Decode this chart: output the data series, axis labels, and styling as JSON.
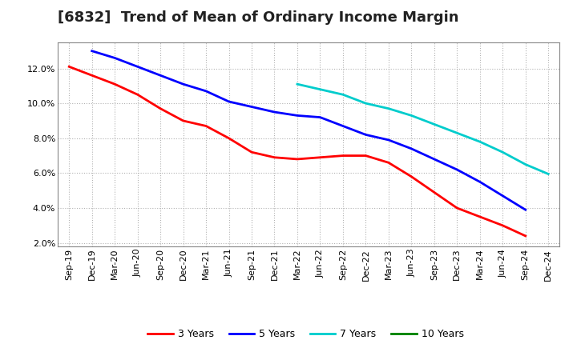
{
  "title": "[6832]  Trend of Mean of Ordinary Income Margin",
  "x_labels": [
    "Sep-19",
    "Dec-19",
    "Mar-20",
    "Jun-20",
    "Sep-20",
    "Dec-20",
    "Mar-21",
    "Jun-21",
    "Sep-21",
    "Dec-21",
    "Mar-22",
    "Jun-22",
    "Sep-22",
    "Dec-22",
    "Mar-23",
    "Jun-23",
    "Sep-23",
    "Dec-23",
    "Mar-24",
    "Jun-24",
    "Sep-24",
    "Dec-24"
  ],
  "series": {
    "3 Years": {
      "color": "#FF0000",
      "values": [
        12.1,
        11.6,
        11.1,
        10.5,
        9.7,
        9.0,
        8.7,
        8.0,
        7.2,
        6.9,
        6.8,
        6.9,
        7.0,
        7.0,
        6.6,
        5.8,
        4.9,
        4.0,
        3.5,
        3.0,
        2.4,
        null
      ]
    },
    "5 Years": {
      "color": "#0000FF",
      "values": [
        null,
        13.0,
        12.6,
        12.1,
        11.6,
        11.1,
        10.7,
        10.1,
        9.8,
        9.5,
        9.3,
        9.2,
        8.7,
        8.2,
        7.9,
        7.4,
        6.8,
        6.2,
        5.5,
        4.7,
        3.9,
        null
      ]
    },
    "7 Years": {
      "color": "#00CCCC",
      "values": [
        null,
        null,
        null,
        null,
        null,
        null,
        null,
        null,
        null,
        null,
        11.1,
        10.8,
        10.5,
        10.0,
        9.7,
        9.3,
        8.8,
        8.3,
        7.8,
        7.2,
        6.5,
        5.95
      ]
    },
    "10 Years": {
      "color": "#008000",
      "values": [
        null,
        null,
        null,
        null,
        null,
        null,
        null,
        null,
        null,
        null,
        null,
        null,
        null,
        null,
        null,
        null,
        null,
        null,
        null,
        null,
        null,
        null
      ]
    }
  },
  "ylim": [
    0.018,
    0.135
  ],
  "yticks": [
    0.02,
    0.04,
    0.06,
    0.08,
    0.1,
    0.12
  ],
  "ytick_labels": [
    "2.0%",
    "4.0%",
    "6.0%",
    "8.0%",
    "10.0%",
    "12.0%"
  ],
  "background_color": "#FFFFFF",
  "grid_color": "#AAAAAA",
  "line_width": 2.0,
  "title_fontsize": 13,
  "tick_fontsize": 8,
  "legend_fontsize": 9
}
